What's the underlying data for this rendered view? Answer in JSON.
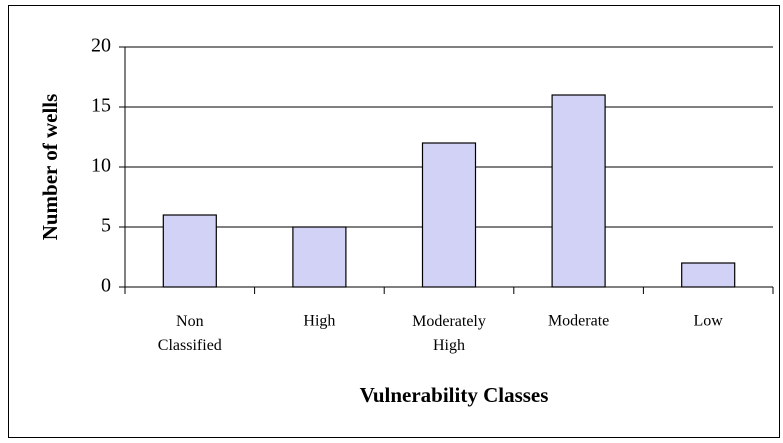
{
  "chart_data": {
    "type": "bar",
    "x_label": "Vulnerability Classes",
    "y_label": "Number of wells",
    "categories": [
      "Non Classified",
      "High",
      "Moderately High",
      "Moderate",
      "Low"
    ],
    "values": [
      6,
      5,
      12,
      16,
      2
    ],
    "color": "#d2d2f7",
    "ylim": [
      0,
      20
    ],
    "yticks": [
      0,
      5,
      10,
      15,
      20
    ],
    "grid": true
  }
}
